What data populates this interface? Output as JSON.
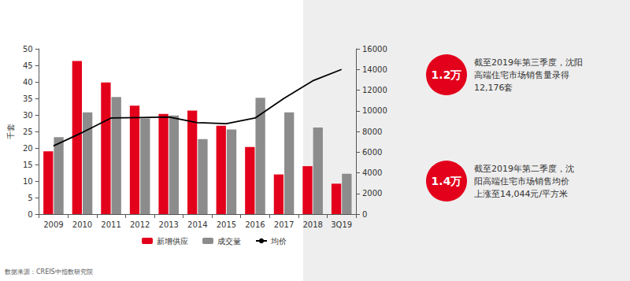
{
  "chart_data": {
    "type": "bar",
    "y_label": "千套",
    "categories": [
      "2009",
      "2010",
      "2011",
      "2012",
      "2013",
      "2014",
      "2015",
      "2016",
      "2017",
      "2018",
      "3Q19"
    ],
    "series": [
      {
        "name": "新增供应",
        "type": "bar",
        "color": "#e3001b",
        "values": [
          19,
          46.3,
          39.8,
          32.8,
          30.3,
          31.3,
          26.7,
          20.3,
          12,
          14.5,
          9.2
        ]
      },
      {
        "name": "成交量",
        "type": "bar",
        "color": "#8c8c8c",
        "values": [
          23.3,
          30.8,
          35.4,
          28.9,
          29.8,
          22.7,
          25.6,
          35.2,
          30.8,
          26.2,
          12.2
        ]
      },
      {
        "name": "均价",
        "type": "line",
        "axis": "y2",
        "color": "#000000",
        "values": [
          6600,
          7900,
          9300,
          9350,
          9400,
          8850,
          8750,
          9300,
          11200,
          12900,
          14000
        ]
      }
    ],
    "ylim": [
      0,
      50
    ],
    "yticks": [
      0,
      5,
      10,
      15,
      20,
      25,
      30,
      35,
      40,
      45,
      50
    ],
    "y2lim": [
      0,
      16000
    ],
    "y2ticks": [
      0,
      2000,
      4000,
      6000,
      8000,
      10000,
      12000,
      14000,
      16000
    ],
    "grid": false,
    "legend": "bottom",
    "source": "数据来源：CREIS中指数研究院",
    "annotations": [
      {
        "badge": "1.2万",
        "text_lines": [
          "截至2019年第三季度，沈阳",
          "高端住宅市场销售量录得",
          "12,176套"
        ]
      },
      {
        "badge": "1.4万",
        "text_lines": [
          "截至2019年第二季度，沈",
          "阳高端住宅市场销售均价",
          "上涨至14,044元/平方米"
        ]
      }
    ]
  }
}
